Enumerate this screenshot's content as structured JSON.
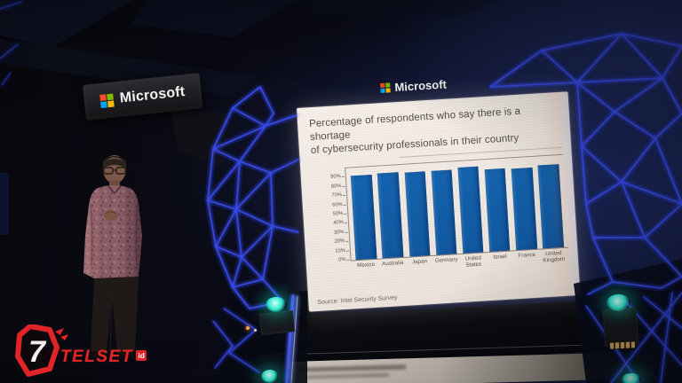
{
  "banner": {
    "brand": "Microsoft"
  },
  "screen": {
    "brand": "Microsoft",
    "slide": {
      "title_line1": "Percentage of respondents who say there is a shortage",
      "title_line2": "of cybersecurity professionals in their country",
      "source": "Source: Intel Security Survey"
    }
  },
  "watermark": {
    "seven": "7",
    "name": "TELSET",
    "tld": "id"
  },
  "chart_data": {
    "type": "bar",
    "title": "Percentage of respondents who say there is a shortage of cybersecurity professionals in their country",
    "categories": [
      "Mexico",
      "Australia",
      "Japan",
      "Germany",
      "United States",
      "Israel",
      "France",
      "United Kingdom"
    ],
    "values": [
      91,
      92,
      91,
      91,
      93,
      89,
      88,
      90
    ],
    "yticks_percent": [
      0,
      10,
      20,
      30,
      40,
      50,
      60,
      70,
      80,
      90
    ],
    "ylim": [
      0,
      100
    ],
    "xlabel": "",
    "ylabel": "",
    "grid": false,
    "legend": false,
    "bar_color": "#1263b0",
    "source": "Source: Intel Security Survey"
  },
  "colors": {
    "bar": "#1263b0",
    "neon_blue": "#3a4ef5",
    "teal_light": "#2cead0",
    "watermark_red": "#e02428",
    "slide_background": "#f2ebe4",
    "ms_red": "#f25022",
    "ms_green": "#7fba00",
    "ms_blue": "#00a4ef",
    "ms_yellow": "#ffb900"
  }
}
